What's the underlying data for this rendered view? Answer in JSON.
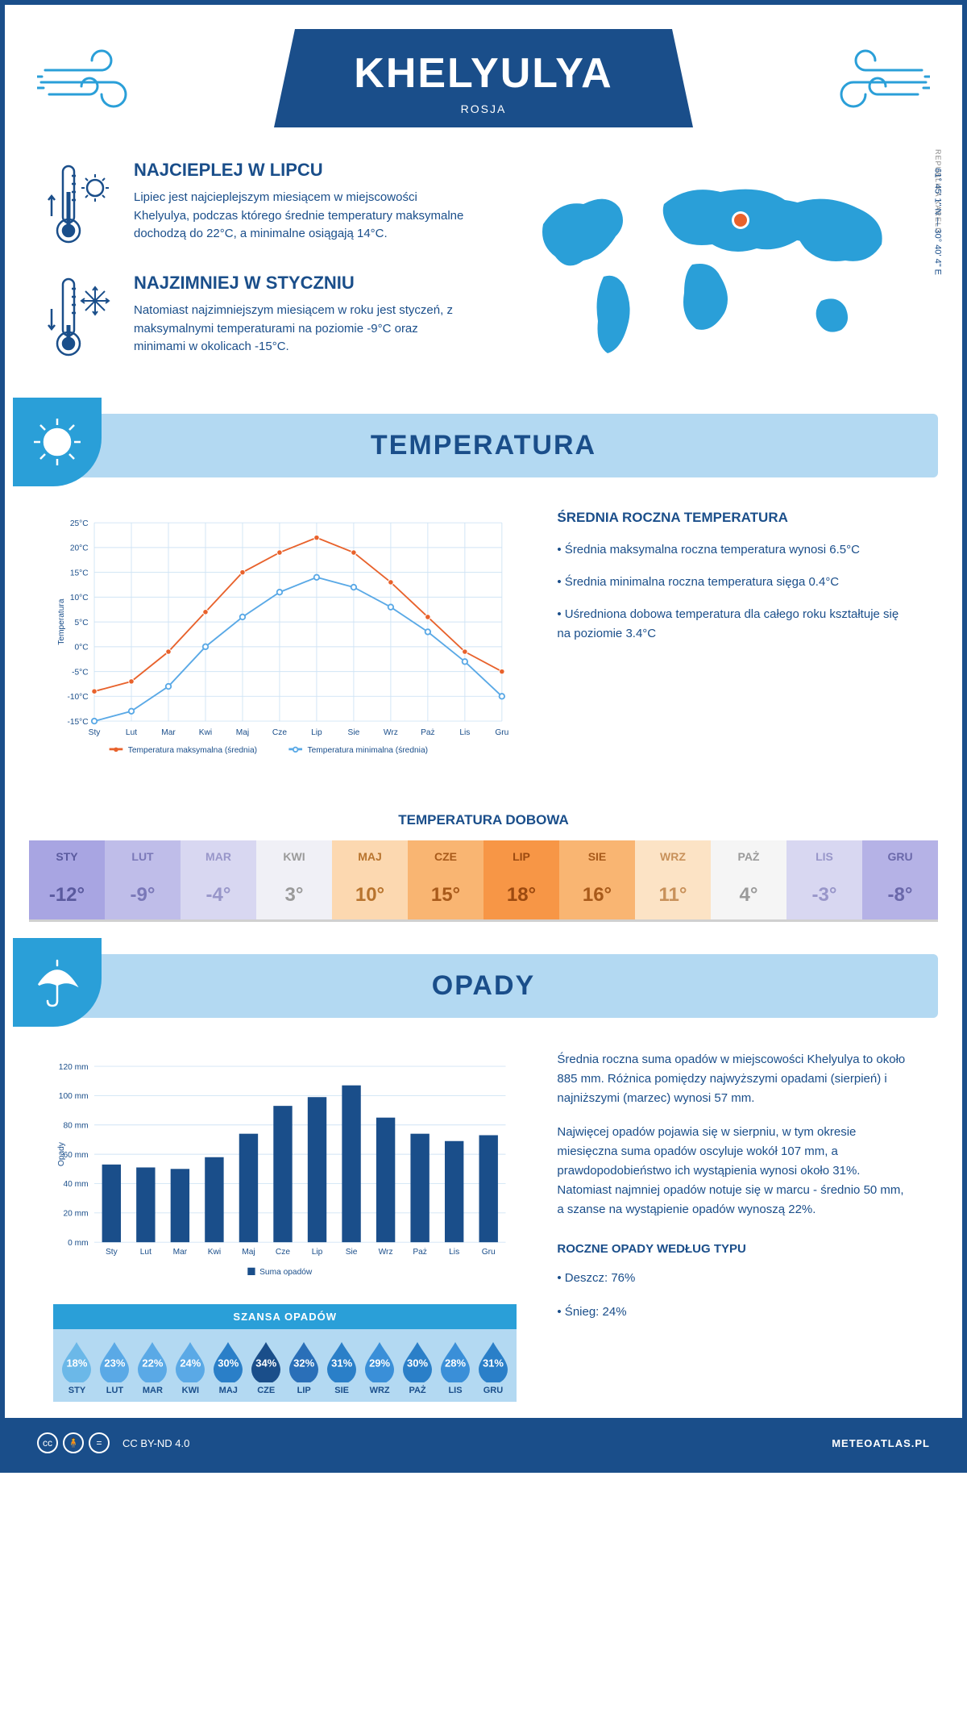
{
  "header": {
    "title": "KHELYULYA",
    "subtitle": "ROSJA"
  },
  "coords": "61° 45' 1\" N — 30° 40' 4\" E",
  "region": "REPUBLIKA KARELII",
  "intro": {
    "warm": {
      "heading": "NAJCIEPLEJ W LIPCU",
      "text": "Lipiec jest najcieplejszym miesiącem w miejscowości Khelyulya, podczas którego średnie temperatury maksymalne dochodzą do 22°C, a minimalne osiągają 14°C."
    },
    "cold": {
      "heading": "NAJZIMNIEJ W STYCZNIU",
      "text": "Natomiast najzimniejszym miesiącem w roku jest styczeń, z maksymalnymi temperaturami na poziomie -9°C oraz minimami w okolicach -15°C."
    }
  },
  "sections": {
    "temperature": "TEMPERATURA",
    "precipitation": "OPADY"
  },
  "temp_chart": {
    "type": "line",
    "y_label": "Temperatura",
    "months": [
      "Sty",
      "Lut",
      "Mar",
      "Kwi",
      "Maj",
      "Cze",
      "Lip",
      "Sie",
      "Wrz",
      "Paż",
      "Lis",
      "Gru"
    ],
    "max_series": [
      -9,
      -7,
      -1,
      7,
      15,
      19,
      22,
      19,
      13,
      6,
      -1,
      -5
    ],
    "min_series": [
      -15,
      -13,
      -8,
      0,
      6,
      11,
      14,
      12,
      8,
      3,
      -3,
      -10
    ],
    "ylim": [
      -15,
      25
    ],
    "ytick_step": 5,
    "colors": {
      "max": "#e8622c",
      "min": "#5aa9e6",
      "grid": "#d0e4f5"
    },
    "legend": {
      "max": "Temperatura maksymalna (średnia)",
      "min": "Temperatura minimalna (średnia)"
    }
  },
  "temp_info": {
    "heading": "ŚREDNIA ROCZNA TEMPERATURA",
    "p1": "• Średnia maksymalna roczna temperatura wynosi 6.5°C",
    "p2": "• Średnia minimalna roczna temperatura sięga 0.4°C",
    "p3": "• Uśredniona dobowa temperatura dla całego roku kształtuje się na poziomie 3.4°C"
  },
  "temp_daily": {
    "title": "TEMPERATURA DOBOWA",
    "months": [
      "STY",
      "LUT",
      "MAR",
      "KWI",
      "MAJ",
      "CZE",
      "LIP",
      "SIE",
      "WRZ",
      "PAŻ",
      "LIS",
      "GRU"
    ],
    "values": [
      "-12°",
      "-9°",
      "-4°",
      "3°",
      "10°",
      "15°",
      "18°",
      "16°",
      "11°",
      "4°",
      "-3°",
      "-8°"
    ],
    "bg_colors": [
      "#a8a5e2",
      "#bfbde9",
      "#d8d7f1",
      "#f0f0f6",
      "#fcd8b0",
      "#f9b572",
      "#f79646",
      "#f9b572",
      "#fce3c5",
      "#f5f5f5",
      "#d8d7f1",
      "#b5b2e6"
    ],
    "text_colors": [
      "#5a5a9e",
      "#7a78b8",
      "#9896c9",
      "#9a9a9a",
      "#b8742e",
      "#a85a1a",
      "#9c4a10",
      "#a85a1a",
      "#c8915a",
      "#9a9a9a",
      "#9896c9",
      "#6a68aa"
    ]
  },
  "precip_chart": {
    "type": "bar",
    "y_label": "Opady",
    "months": [
      "Sty",
      "Lut",
      "Mar",
      "Kwi",
      "Maj",
      "Cze",
      "Lip",
      "Sie",
      "Wrz",
      "Paż",
      "Lis",
      "Gru"
    ],
    "values": [
      53,
      51,
      50,
      58,
      74,
      93,
      99,
      107,
      85,
      74,
      69,
      73
    ],
    "ylim": [
      0,
      120
    ],
    "ytick_step": 20,
    "bar_color": "#1a4e8a",
    "legend": "Suma opadów",
    "y_unit": "mm"
  },
  "precip_info": {
    "p1": "Średnia roczna suma opadów w miejscowości Khelyulya to około 885 mm. Różnica pomiędzy najwyższymi opadami (sierpień) i najniższymi (marzec) wynosi 57 mm.",
    "p2": "Najwięcej opadów pojawia się w sierpniu, w tym okresie miesięczna suma opadów oscyluje wokół 107 mm, a prawdopodobieństwo ich wystąpienia wynosi około 31%. Natomiast najmniej opadów notuje się w marcu - średnio 50 mm, a szanse na wystąpienie opadów wynoszą 22%.",
    "type_heading": "ROCZNE OPADY WEDŁUG TYPU",
    "rain": "• Deszcz: 76%",
    "snow": "• Śnieg: 24%"
  },
  "chance": {
    "title": "SZANSA OPADÓW",
    "months": [
      "STY",
      "LUT",
      "MAR",
      "KWI",
      "MAJ",
      "CZE",
      "LIP",
      "SIE",
      "WRZ",
      "PAŻ",
      "LIS",
      "GRU"
    ],
    "values": [
      "18%",
      "23%",
      "22%",
      "24%",
      "30%",
      "34%",
      "32%",
      "31%",
      "29%",
      "30%",
      "28%",
      "31%"
    ],
    "drop_colors": [
      "#6bb8e8",
      "#5aa9e6",
      "#5aa9e6",
      "#5aa9e6",
      "#2a7fc8",
      "#1a4e8a",
      "#2a6fb8",
      "#2a7fc8",
      "#3a8fd8",
      "#2a7fc8",
      "#3a8fd8",
      "#2a7fc8"
    ]
  },
  "footer": {
    "license": "CC BY-ND 4.0",
    "site": "METEOATLAS.PL"
  }
}
